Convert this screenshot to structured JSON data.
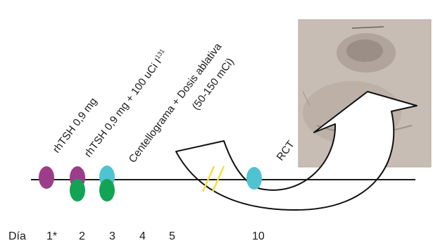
{
  "colors": {
    "purple": "#9c3d8a",
    "green": "#12a454",
    "cyan": "#4fc3cf",
    "yellow": "#f2e23a",
    "line": "#1a1a1a",
    "scan_bg": "#c9beb6"
  },
  "labels": {
    "step1": "rhTSH 0,9 mg",
    "step2": "rhTSH 0,9 mg + 100 uCi I",
    "step2_sup": "131",
    "step3_line1": "Centellograma + Dosis ablativa",
    "step3_line2": "(50-150 mCi)",
    "rct": "RCT"
  },
  "days": {
    "prefix": "Día",
    "d1": "1*",
    "d2": "2",
    "d3": "3",
    "d4": "4",
    "d5": "5",
    "d10": "10"
  }
}
